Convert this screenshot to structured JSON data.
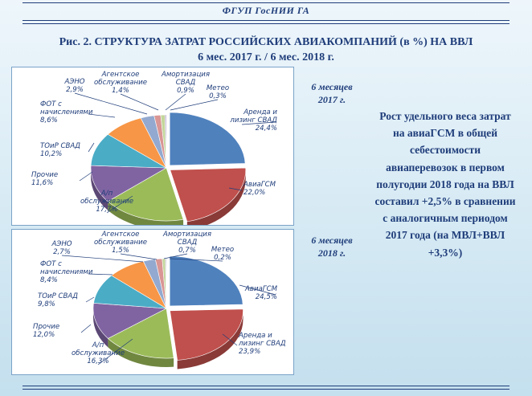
{
  "header": {
    "org": "ФГУП ГосНИИ ГА",
    "title_line1": "Рис. 2. СТРУКТУРА ЗАТРАТ РОССИЙСКИХ АВИАКОМПАНИЙ (в %) НА ВВЛ",
    "title_line2": "6 мес. 2017 г. / 6 мес. 2018 г."
  },
  "side_text": "Рост удельного веса затрат на авиаГСМ в общей себестоимости авиаперевозок в первом полугодии 2018 года на ВВЛ составил +2,5% в сравнении с аналогичным периодом 2017 года (на МВЛ+ВВЛ +3,3%)",
  "colors": {
    "title": "#1f3d7a",
    "slices": [
      "#4f81bd",
      "#c0504d",
      "#9bbb59",
      "#8064a2",
      "#4bacc6",
      "#f79646",
      "#93a9cf",
      "#d99694",
      "#c3d69b",
      "#b3a2c7"
    ]
  },
  "chart_data": [
    {
      "type": "pie",
      "period_line1": "6 месяцев",
      "period_line2": "2017 г.",
      "slices": [
        {
          "name_lines": [
            "Аренда и",
            "лизинг СВАД"
          ],
          "label": "24,4%",
          "value": 24.4
        },
        {
          "name_lines": [
            "АвиаГСМ"
          ],
          "label": "22,0%",
          "value": 22.0
        },
        {
          "name_lines": [
            "А/п",
            "обслуживание"
          ],
          "label": "17,7%",
          "value": 17.7
        },
        {
          "name_lines": [
            "Прочие"
          ],
          "label": "11,6%",
          "value": 11.6
        },
        {
          "name_lines": [
            "ТОиР СВАД"
          ],
          "label": "10,2%",
          "value": 10.2
        },
        {
          "name_lines": [
            "ФОТ с",
            "начислениями"
          ],
          "label": "8,6%",
          "value": 8.6
        },
        {
          "name_lines": [
            "АЭНО"
          ],
          "label": "2,9%",
          "value": 2.9
        },
        {
          "name_lines": [
            "Агентское",
            "обслуживание"
          ],
          "label": "1,4%",
          "value": 1.4
        },
        {
          "name_lines": [
            "Амортизация",
            "СВАД"
          ],
          "label": "0,9%",
          "value": 0.9
        },
        {
          "name_lines": [
            "Метео"
          ],
          "label": "0,3%",
          "value": 0.3
        }
      ]
    },
    {
      "type": "pie",
      "period_line1": "6 месяцев",
      "period_line2": "2018 г.",
      "slices": [
        {
          "name_lines": [
            "АвиаГСМ"
          ],
          "label": "24,5%",
          "value": 24.5
        },
        {
          "name_lines": [
            "Аренда и",
            "лизинг СВАД"
          ],
          "label": "23,9%",
          "value": 23.9
        },
        {
          "name_lines": [
            "А/п",
            "обслуживание"
          ],
          "label": "16,3%",
          "value": 16.3
        },
        {
          "name_lines": [
            "Прочие"
          ],
          "label": "12,0%",
          "value": 12.0
        },
        {
          "name_lines": [
            "ТОиР СВАД"
          ],
          "label": "9,8%",
          "value": 9.8
        },
        {
          "name_lines": [
            "ФОТ с",
            "начислениями"
          ],
          "label": "8,4%",
          "value": 8.4
        },
        {
          "name_lines": [
            "АЭНО"
          ],
          "label": "2,7%",
          "value": 2.7
        },
        {
          "name_lines": [
            "Агентское",
            "обслуживание"
          ],
          "label": "1,5%",
          "value": 1.5
        },
        {
          "name_lines": [
            "Амортизация",
            "СВАД"
          ],
          "label": "0,7%",
          "value": 0.7
        },
        {
          "name_lines": [
            "Метео"
          ],
          "label": "0,2%",
          "value": 0.2
        }
      ]
    }
  ]
}
